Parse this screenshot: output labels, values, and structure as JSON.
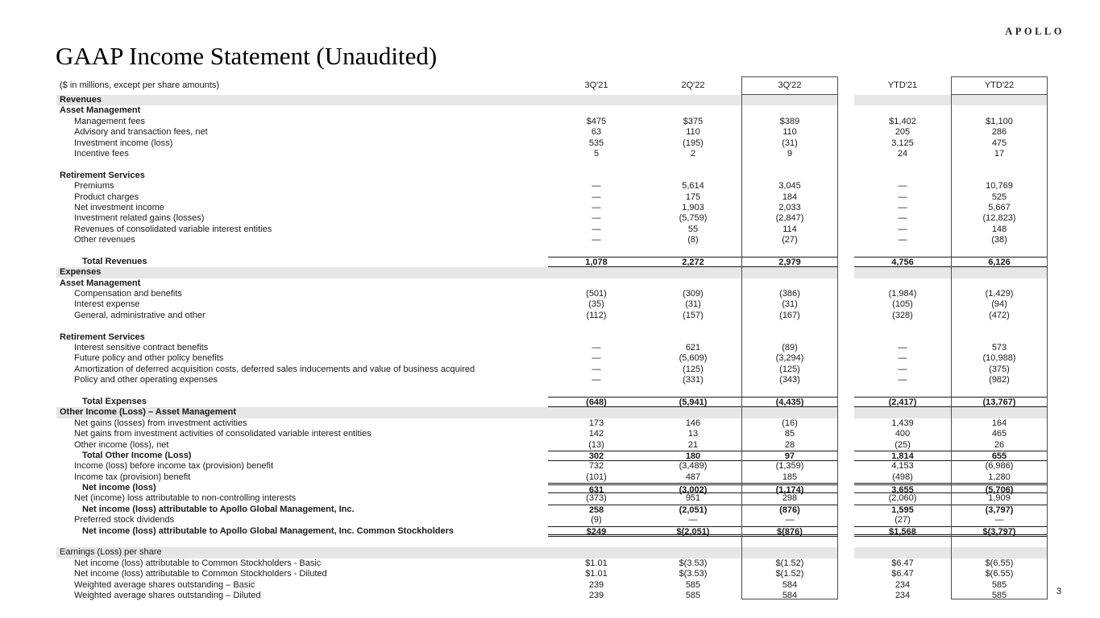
{
  "page": {
    "logo": "APOLLO",
    "title": "GAAP Income Statement (Unaudited)",
    "page_number": "3"
  },
  "colors": {
    "section_band": "#e7e6e6",
    "box_border": "#4d4d4d",
    "rule_lines": "#1a1a1a"
  },
  "table": {
    "subtitle": "($ in millions, except per share amounts)",
    "columns": [
      "3Q'21",
      "2Q'22",
      "3Q'22",
      "YTD'21",
      "YTD'22"
    ],
    "highlighted_columns": [
      "3Q'22",
      "YTD'22"
    ],
    "rows": [
      {
        "t": "sec",
        "l": "Revenues"
      },
      {
        "t": "grp",
        "l": "Asset Management"
      },
      {
        "t": "item",
        "l": "Management fees",
        "v": [
          "$475",
          "$375",
          "$389",
          "$1,402",
          "$1,100"
        ]
      },
      {
        "t": "item",
        "l": "Advisory and transaction fees, net",
        "v": [
          "63",
          "110",
          "110",
          "205",
          "286"
        ]
      },
      {
        "t": "item",
        "l": "Investment income (loss)",
        "v": [
          "535",
          "(195)",
          "(31)",
          "3,125",
          "475"
        ]
      },
      {
        "t": "item",
        "l": "Incentive fees",
        "v": [
          "5",
          "2",
          "9",
          "24",
          "17"
        ]
      },
      {
        "t": "blank"
      },
      {
        "t": "grp",
        "l": "Retirement Services"
      },
      {
        "t": "item",
        "l": "Premiums",
        "v": [
          "—",
          "5,614",
          "3,045",
          "—",
          "10,769"
        ]
      },
      {
        "t": "item",
        "l": "Product charges",
        "v": [
          "—",
          "175",
          "184",
          "—",
          "525"
        ]
      },
      {
        "t": "item",
        "l": "Net investment income",
        "v": [
          "—",
          "1,903",
          "2,033",
          "—",
          "5,667"
        ]
      },
      {
        "t": "item",
        "l": "Investment related gains (losses)",
        "v": [
          "—",
          "(5,759)",
          "(2,847)",
          "—",
          "(12,823)"
        ]
      },
      {
        "t": "item",
        "l": "Revenues of consolidated variable interest entities",
        "v": [
          "—",
          "55",
          "114",
          "—",
          "148"
        ]
      },
      {
        "t": "item",
        "l": "Other revenues",
        "v": [
          "—",
          "(8)",
          "(27)",
          "—",
          "(38)"
        ]
      },
      {
        "t": "blank"
      },
      {
        "t": "tot",
        "l": "Total Revenues",
        "v": [
          "1,078",
          "2,272",
          "2,979",
          "4,756",
          "6,126"
        ]
      },
      {
        "t": "sec",
        "l": "Expenses"
      },
      {
        "t": "grp",
        "l": "Asset Management"
      },
      {
        "t": "item",
        "l": "Compensation and benefits",
        "v": [
          "(501)",
          "(309)",
          "(386)",
          "(1,984)",
          "(1,429)"
        ]
      },
      {
        "t": "item",
        "l": "Interest expense",
        "v": [
          "(35)",
          "(31)",
          "(31)",
          "(105)",
          "(94)"
        ]
      },
      {
        "t": "item",
        "l": "General, administrative and other",
        "v": [
          "(112)",
          "(157)",
          "(167)",
          "(328)",
          "(472)"
        ]
      },
      {
        "t": "blank"
      },
      {
        "t": "grp",
        "l": "Retirement Services"
      },
      {
        "t": "item",
        "l": "Interest sensitive contract benefits",
        "v": [
          "—",
          "621",
          "(89)",
          "—",
          "573"
        ]
      },
      {
        "t": "item",
        "l": "Future policy and other policy benefits",
        "v": [
          "—",
          "(5,609)",
          "(3,294)",
          "—",
          "(10,988)"
        ]
      },
      {
        "t": "item",
        "l": "Amortization of deferred acquisition costs, deferred sales inducements and value of business acquired",
        "v": [
          "—",
          "(125)",
          "(125)",
          "—",
          "(375)"
        ]
      },
      {
        "t": "item",
        "l": "Policy and other operating expenses",
        "v": [
          "—",
          "(331)",
          "(343)",
          "—",
          "(982)"
        ]
      },
      {
        "t": "blank"
      },
      {
        "t": "tot",
        "l": "Total Expenses",
        "v": [
          "(648)",
          "(5,941)",
          "(4,435)",
          "(2,417)",
          "(13,767)"
        ]
      },
      {
        "t": "sec",
        "l": "Other Income (Loss) – Asset Management"
      },
      {
        "t": "item",
        "l": "Net gains (losses) from investment activities",
        "v": [
          "173",
          "146",
          "(16)",
          "1,439",
          "164"
        ]
      },
      {
        "t": "item",
        "l": "Net gains from investment activities of consolidated variable interest entities",
        "v": [
          "142",
          "13",
          "85",
          "400",
          "465"
        ]
      },
      {
        "t": "item",
        "l": "Other income (loss), net",
        "v": [
          "(13)",
          "21",
          "28",
          "(25)",
          "26"
        ]
      },
      {
        "t": "tot",
        "l": "Total Other Income (Loss)",
        "v": [
          "302",
          "180",
          "97",
          "1,814",
          "655"
        ]
      },
      {
        "t": "item",
        "l": "Income (loss) before income tax (provision) benefit",
        "v": [
          "732",
          "(3,489)",
          "(1,359)",
          "4,153",
          "(6,986)"
        ]
      },
      {
        "t": "item",
        "l": "Income tax (provision) benefit",
        "v": [
          "(101)",
          "487",
          "185",
          "(498)",
          "1,280"
        ]
      },
      {
        "t": "net",
        "l": "Net income (loss)",
        "v": [
          "631",
          "(3,002)",
          "(1,174)",
          "3,655",
          "(5,706)"
        ]
      },
      {
        "t": "item",
        "l": "Net (income) loss attributable to non-controlling interests",
        "v": [
          "(373)",
          "951",
          "298",
          "(2,060)",
          "1,909"
        ]
      },
      {
        "t": "tot_top",
        "l": "Net income (loss) attributable to Apollo Global Management, Inc.",
        "v": [
          "258",
          "(2,051)",
          "(876)",
          "1,595",
          "(3,797)"
        ]
      },
      {
        "t": "item",
        "l": "Preferred stock dividends",
        "v": [
          "(9)",
          "—",
          "—",
          "(27)",
          "—"
        ]
      },
      {
        "t": "grand",
        "l": "Net income (loss) attributable to Apollo Global Management, Inc. Common Stockholders",
        "v": [
          "$249",
          "$(2,051)",
          "$(876)",
          "$1,568",
          "$(3,797)"
        ]
      },
      {
        "t": "blank"
      },
      {
        "t": "sec2",
        "l": "Earnings (Loss) per share"
      },
      {
        "t": "item",
        "l": "Net income (loss) attributable to Common Stockholders - Basic",
        "v": [
          "$1.01",
          "$(3.53)",
          "$(1.52)",
          "$6.47",
          "$(6.55)"
        ]
      },
      {
        "t": "item",
        "l": "Net income (loss) attributable to Common Stockholders - Diluted",
        "v": [
          "$1.01",
          "$(3.53)",
          "$(1.52)",
          "$6.47",
          "$(6.55)"
        ]
      },
      {
        "t": "item",
        "l": "Weighted average shares outstanding – Basic",
        "v": [
          "239",
          "585",
          "584",
          "234",
          "585"
        ]
      },
      {
        "t": "item",
        "l": "Weighted average shares outstanding – Diluted",
        "v": [
          "239",
          "585",
          "584",
          "234",
          "585"
        ]
      }
    ]
  }
}
